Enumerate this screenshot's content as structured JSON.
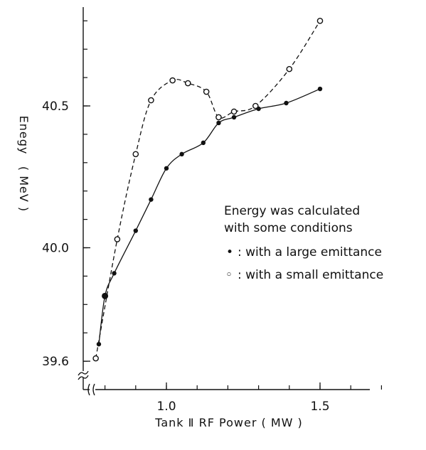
{
  "chart_data": {
    "type": "line",
    "xlabel": "Tank Ⅱ RF Power ( MW )",
    "ylabel_parts": [
      "Enegy",
      "( MeV )"
    ],
    "x_ticks": [
      {
        "value": 1.0,
        "label": "1.0"
      },
      {
        "value": 1.5,
        "label": "1.5"
      }
    ],
    "y_ticks": [
      {
        "value": 39.6,
        "label": "39.6"
      },
      {
        "value": 40.0,
        "label": "40.0"
      },
      {
        "value": 40.5,
        "label": "40.5"
      }
    ],
    "xlim": [
      0.7,
      1.72
    ],
    "ylim": [
      39.6,
      40.84
    ],
    "axis_break": true,
    "grid": false,
    "series": [
      {
        "marker": "filled-dot",
        "line_style": "solid",
        "x": [
          0.78,
          0.8,
          0.83,
          0.9,
          0.95,
          1.0,
          1.05,
          1.12,
          1.17,
          1.22,
          1.3,
          1.39,
          1.5
        ],
        "values": [
          39.66,
          39.83,
          39.91,
          40.06,
          40.17,
          40.28,
          40.33,
          40.37,
          40.44,
          40.46,
          40.49,
          40.51,
          40.56
        ]
      },
      {
        "marker": "open-circle",
        "line_style": "dashed",
        "x": [
          0.77,
          0.84,
          0.9,
          0.95,
          1.02,
          1.07,
          1.13,
          1.17,
          1.22,
          1.29,
          1.4,
          1.5
        ],
        "values": [
          39.61,
          40.03,
          40.33,
          40.52,
          40.59,
          40.58,
          40.55,
          40.46,
          40.48,
          40.5,
          40.63,
          40.8
        ]
      }
    ],
    "annotation": {
      "lines": [
        "Energy was calculated",
        "with some conditions"
      ],
      "legend": [
        {
          "symbol": "•",
          "text": ": with a large emittance"
        },
        {
          "symbol": "◦",
          "text": ": with a small emittance"
        }
      ]
    }
  }
}
